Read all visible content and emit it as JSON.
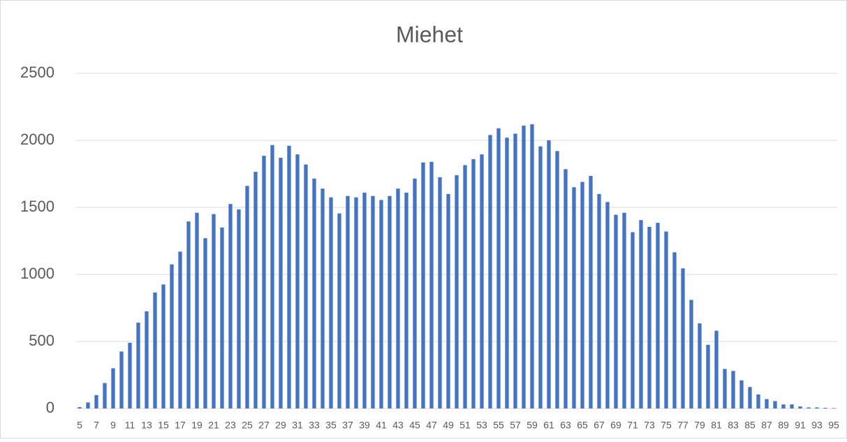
{
  "chart_data": {
    "type": "bar",
    "title": "Miehet",
    "categories": [
      5,
      null,
      7,
      null,
      9,
      null,
      11,
      null,
      13,
      null,
      15,
      null,
      17,
      null,
      19,
      null,
      21,
      null,
      23,
      null,
      25,
      null,
      27,
      null,
      29,
      null,
      31,
      null,
      33,
      null,
      35,
      null,
      37,
      null,
      39,
      null,
      41,
      null,
      43,
      null,
      45,
      null,
      47,
      null,
      49,
      null,
      51,
      null,
      53,
      null,
      55,
      null,
      57,
      null,
      59,
      null,
      61,
      null,
      63,
      null,
      65,
      null,
      67,
      null,
      69,
      null,
      71,
      null,
      73,
      null,
      75,
      null,
      77,
      null,
      79,
      null,
      81,
      null,
      83,
      null,
      85,
      null,
      87,
      null,
      89,
      null,
      91,
      null,
      93,
      null,
      95
    ],
    "values": [
      10,
      45,
      100,
      190,
      300,
      425,
      490,
      640,
      725,
      865,
      925,
      1075,
      1170,
      1395,
      1460,
      1270,
      1450,
      1350,
      1525,
      1485,
      1660,
      1765,
      1885,
      1965,
      1870,
      1960,
      1895,
      1820,
      1715,
      1640,
      1575,
      1455,
      1585,
      1575,
      1610,
      1585,
      1555,
      1585,
      1640,
      1610,
      1715,
      1835,
      1840,
      1725,
      1600,
      1740,
      1815,
      1860,
      1895,
      2040,
      2090,
      2020,
      2050,
      2110,
      2120,
      1955,
      2000,
      1920,
      1785,
      1650,
      1690,
      1735,
      1600,
      1540,
      1445,
      1460,
      1315,
      1405,
      1355,
      1385,
      1320,
      1165,
      1045,
      810,
      635,
      475,
      580,
      295,
      280,
      210,
      160,
      105,
      70,
      55,
      30,
      30,
      15,
      8,
      8,
      5,
      3
    ],
    "color": "#4472c4",
    "ylim": [
      0,
      2500
    ],
    "yticks": [
      0,
      500,
      1000,
      1500,
      2000,
      2500
    ],
    "grid": true
  }
}
